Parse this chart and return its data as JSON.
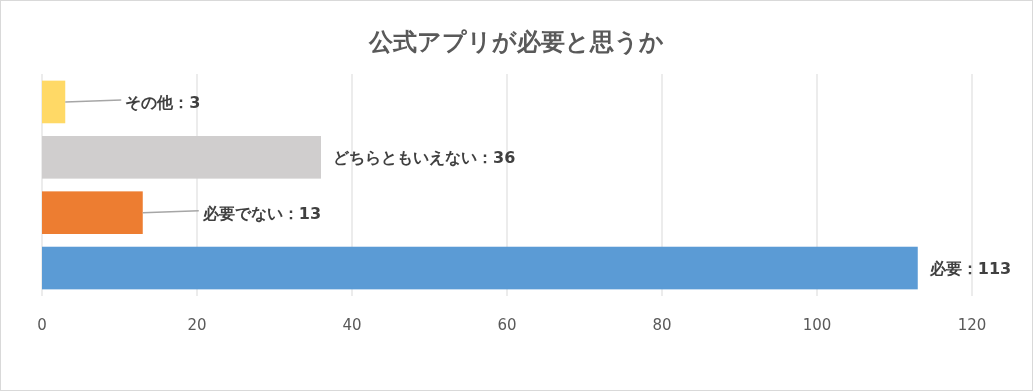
{
  "chart_data": {
    "type": "bar",
    "orientation": "horizontal",
    "title": "公式アプリが必要と思うか",
    "categories": [
      null,
      null,
      null,
      null
    ],
    "values": [
      3,
      36,
      13,
      113
    ],
    "value_labels": [
      "その他：3",
      "どちらともいえない：36",
      "必要でない：13",
      "必要：113"
    ],
    "colors": [
      "#ffd966",
      "#d0cece",
      "#ed7d31",
      "#5b9bd5"
    ],
    "xlim": [
      0,
      120
    ],
    "xticks": [
      0,
      20,
      40,
      60,
      80,
      100,
      120
    ],
    "grid": "x",
    "tick_labels": "x"
  }
}
